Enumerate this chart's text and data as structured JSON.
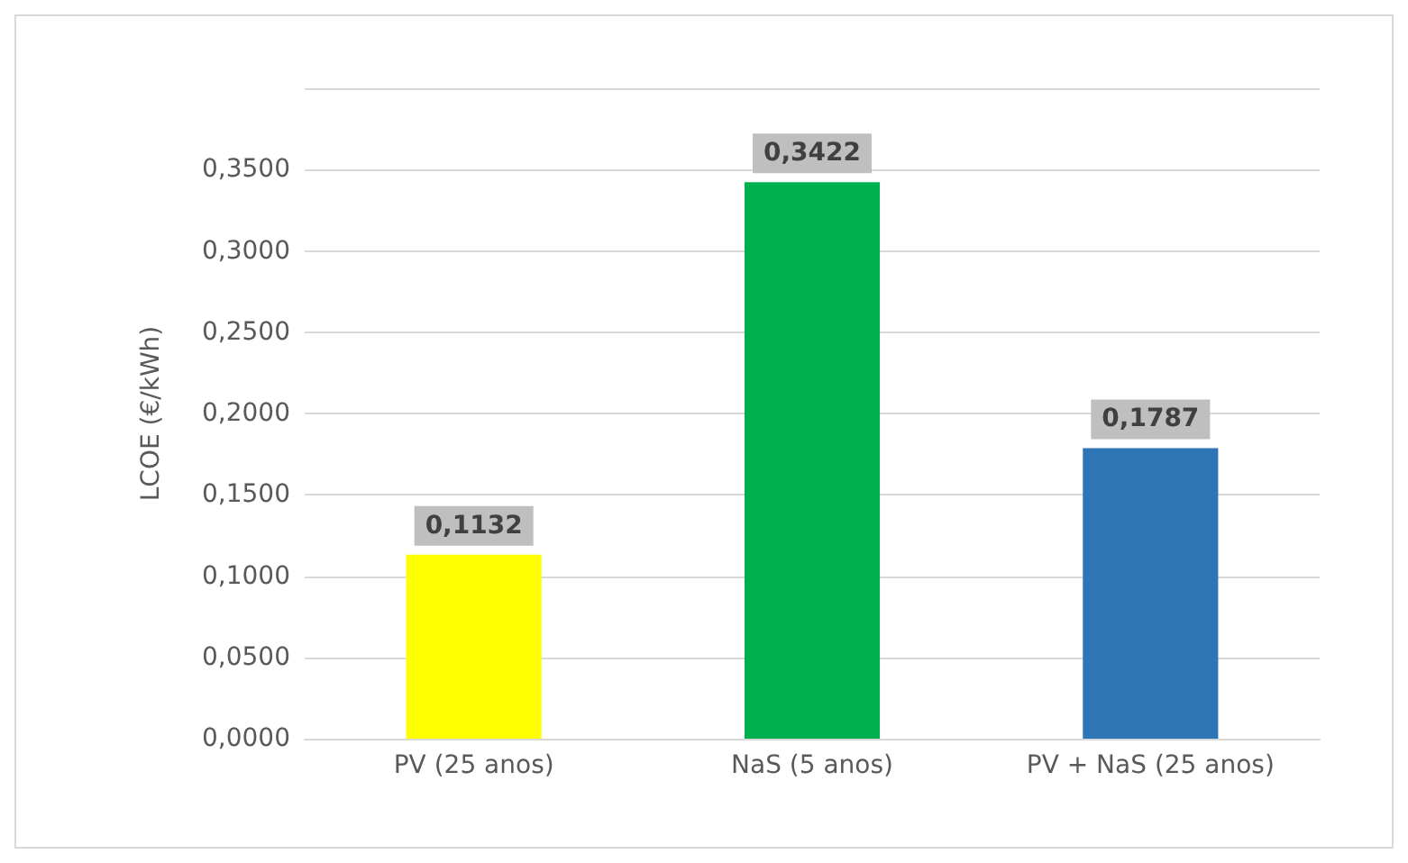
{
  "chart_data": {
    "type": "bar",
    "ylabel": "LCOE (€/kWh)",
    "categories": [
      "PV (25 anos)",
      "NaS (5 anos)",
      "PV + NaS (25 anos)"
    ],
    "values": [
      0.1132,
      0.3422,
      0.1787
    ],
    "colors": [
      "#ffff00",
      "#00b050",
      "#2e75b6"
    ],
    "value_labels": [
      "0,1132",
      "0,3422",
      "0,1787"
    ],
    "ylim": [
      0,
      0.4
    ],
    "yticks": [
      {
        "value": 0,
        "label": "0,0000"
      },
      {
        "value": 0.05,
        "label": "0,0500"
      },
      {
        "value": 0.1,
        "label": "0,1000"
      },
      {
        "value": 0.15,
        "label": "0,1500"
      },
      {
        "value": 0.2,
        "label": "0,2000"
      },
      {
        "value": 0.25,
        "label": "0,2500"
      },
      {
        "value": 0.3,
        "label": "0,3000"
      },
      {
        "value": 0.35,
        "label": "0,3500"
      },
      {
        "value": 0.4,
        "label": null
      }
    ],
    "grid": "y"
  }
}
